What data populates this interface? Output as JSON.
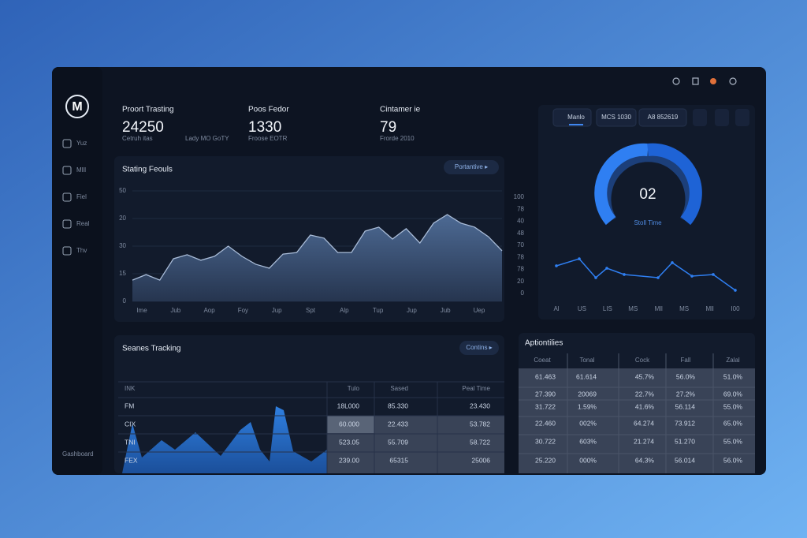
{
  "sidebar": {
    "logo": "M",
    "items": [
      "Yuz",
      "Mlll",
      "Fiel",
      "Real",
      "Thv"
    ],
    "footer": "Gashboard"
  },
  "stats": [
    {
      "title": "Proort Trasting",
      "value": "24250",
      "sub": "Cetruh itas",
      "extra": "Lady MO GoTY"
    },
    {
      "title": "Poos Fedor",
      "value": "1330",
      "sub": "Froose EOTR"
    },
    {
      "title": "Cintamer ie",
      "value": "79",
      "sub": "Frorde 2010"
    }
  ],
  "area_chart": {
    "type": "area",
    "title": "Stating Feouls",
    "button": "Portantive ▸",
    "y_labels": [
      "50",
      "20",
      "30",
      "15",
      "0"
    ],
    "x_labels": [
      "Ime",
      "Jub",
      "Aop",
      "Foy",
      "Jup",
      "Spt",
      "Alp",
      "Tup",
      "Jup",
      "Jub",
      "Uep"
    ],
    "ylim": [
      0,
      50
    ],
    "values": [
      9.6,
      12.1,
      9.6,
      19.3,
      21.1,
      18.6,
      20.4,
      25,
      20.4,
      16.8,
      15,
      21.4,
      22.1,
      30,
      28.6,
      22.1,
      22.1,
      31.8,
      33.6,
      28.2,
      32.9,
      26.4,
      35.4,
      39.3,
      35.4,
      33.6,
      29.3,
      22.9
    ]
  },
  "right_panel": {
    "tabs": [
      "Manlo",
      "MCS 1030",
      "A8 852619"
    ],
    "gauge": {
      "value_text": "02",
      "label": "Stoll Time"
    },
    "line_chart": {
      "type": "line",
      "y_labels": [
        "100",
        "78",
        "40",
        "48",
        "70",
        "78",
        "78",
        "20",
        "0"
      ],
      "x_labels": [
        "Al",
        "US",
        "LIS",
        "MS",
        "Mll",
        "MS",
        "Mll",
        "I00"
      ],
      "ylim": [
        0,
        100
      ],
      "values": [
        28.7,
        36,
        16.4,
        26.2,
        19.7,
        16.4,
        32,
        18,
        19.7,
        3.3
      ]
    }
  },
  "tracking": {
    "title": "Seanes Tracking",
    "button": "Contins ▸",
    "table": {
      "header": [
        "INK",
        "Tulo",
        "Sased",
        "Peal Time"
      ],
      "rows": [
        [
          "FM",
          "18L000",
          "85.330",
          "23.430"
        ],
        [
          "CIX",
          "60.000",
          "22.433",
          "53.782"
        ],
        [
          "TNI",
          "523.05",
          "55.709",
          "58.722"
        ],
        [
          "FEX",
          "239.00",
          "65315",
          "25006"
        ]
      ]
    }
  },
  "activities": {
    "title": "Aptiontilies",
    "table": {
      "header": [
        "Coeat",
        "Tonal",
        "Cock",
        "Fall",
        "Zalal"
      ],
      "rows": [
        [
          "61.463",
          "61.614",
          "45.7%",
          "56.0%",
          "51.0%"
        ],
        [
          "27.390",
          "20069",
          "22.7%",
          "27.2%",
          "69.0%"
        ],
        [
          "31.722",
          "1.59%",
          "41.6%",
          "56.114",
          "55.0%"
        ],
        [
          "22.460",
          "002%",
          "64.274",
          "73.912",
          "65.0%"
        ],
        [
          "30.722",
          "603%",
          "21.274",
          "51.270",
          "55.0%"
        ],
        [
          "25.220",
          "000%",
          "64.3%",
          "56.014",
          "56.0%"
        ]
      ]
    }
  }
}
